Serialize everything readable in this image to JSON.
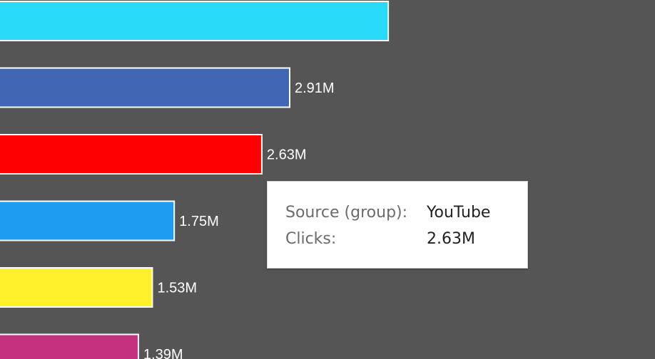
{
  "chart_data": {
    "type": "bar",
    "orientation": "horizontal",
    "bars": [
      {
        "display": "",
        "color": "#29d9f8"
      },
      {
        "value": 2.91,
        "display": "2.91M",
        "color": "#4066b4"
      },
      {
        "value": 2.63,
        "display": "2.63M",
        "color": "#ff0000"
      },
      {
        "value": 1.75,
        "display": "1.75M",
        "color": "#1e9cf2"
      },
      {
        "value": 1.53,
        "display": "1.53M",
        "color": "#fef02a"
      },
      {
        "value": 1.39,
        "display": "1.39M",
        "color": "#c4317f"
      }
    ],
    "units": "M",
    "grid": false,
    "background": "#555555",
    "bar_border": "#ffffff"
  },
  "tooltip": {
    "rows": [
      {
        "key": "Source (group):",
        "value": "YouTube"
      },
      {
        "key": "Clicks:",
        "value": "2.63M"
      }
    ]
  }
}
